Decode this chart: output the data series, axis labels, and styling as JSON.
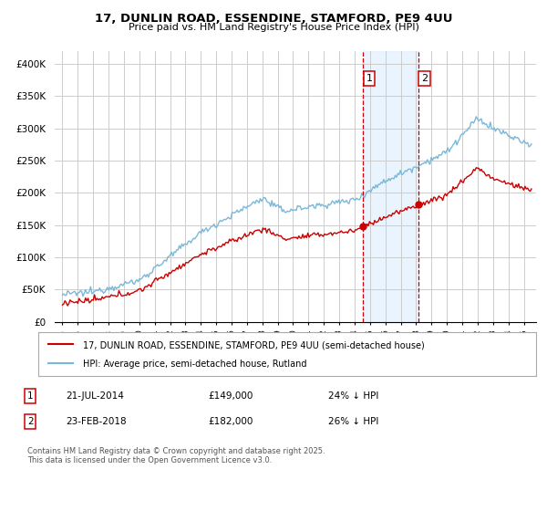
{
  "title_line1": "17, DUNLIN ROAD, ESSENDINE, STAMFORD, PE9 4UU",
  "title_line2": "Price paid vs. HM Land Registry's House Price Index (HPI)",
  "legend_line1": "17, DUNLIN ROAD, ESSENDINE, STAMFORD, PE9 4UU (semi-detached house)",
  "legend_line2": "HPI: Average price, semi-detached house, Rutland",
  "annotation1_label": "1",
  "annotation1_date": "21-JUL-2014",
  "annotation1_price": "£149,000",
  "annotation1_pct": "24% ↓ HPI",
  "annotation2_label": "2",
  "annotation2_date": "23-FEB-2018",
  "annotation2_price": "£182,000",
  "annotation2_pct": "26% ↓ HPI",
  "footnote": "Contains HM Land Registry data © Crown copyright and database right 2025.\nThis data is licensed under the Open Government Licence v3.0.",
  "sale1_date_num": 2014.55,
  "sale1_price": 149000,
  "sale2_date_num": 2018.14,
  "sale2_price": 182000,
  "hpi_color": "#7ab8d9",
  "property_color": "#cc0000",
  "background_color": "#ffffff",
  "grid_color": "#cccccc",
  "shade_color": "#ddeeff",
  "vline_color": "#cc0000",
  "ylim": [
    0,
    420000
  ],
  "yticks": [
    0,
    50000,
    100000,
    150000,
    200000,
    250000,
    300000,
    350000,
    400000
  ],
  "xlim_min": 1994.5,
  "xlim_max": 2025.8
}
